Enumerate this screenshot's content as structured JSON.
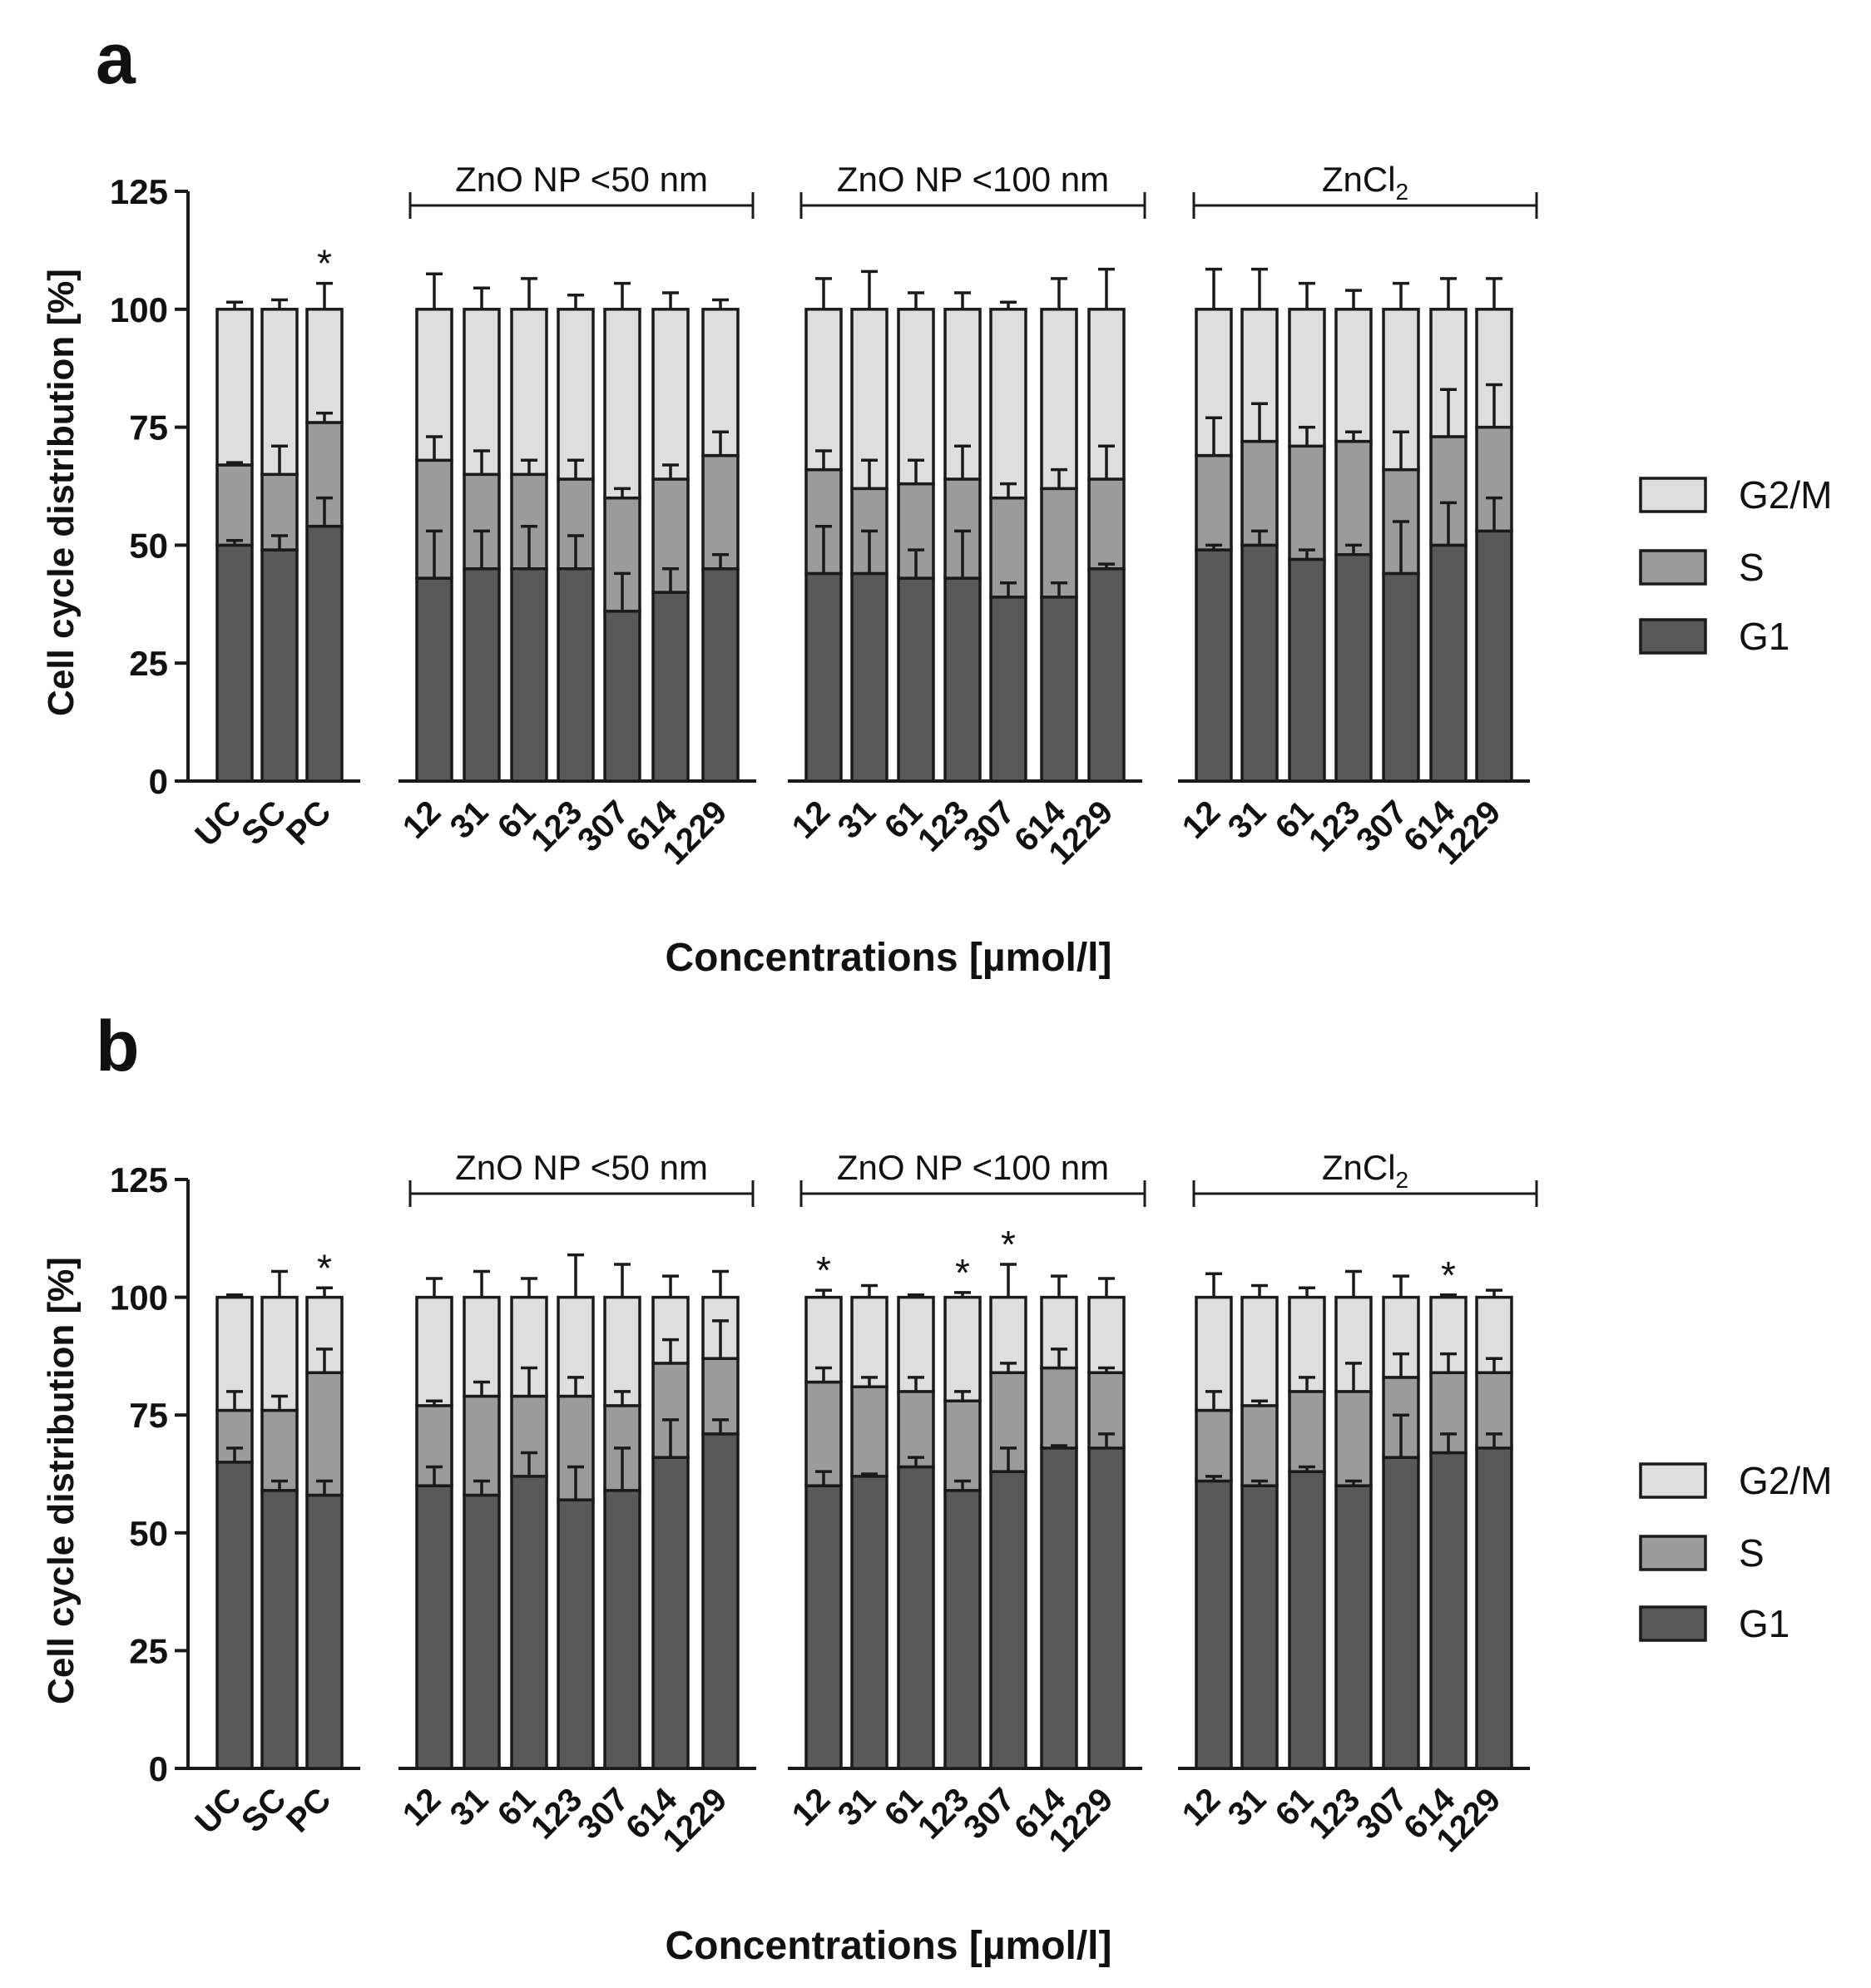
{
  "legend_labels": [
    "G2/M",
    "S",
    "G1"
  ],
  "colors": {
    "g1": "#595959",
    "s": "#9b9b9b",
    "g2m": "#dedede",
    "stroke": "#1a1a1a"
  },
  "chart_data": [
    {
      "type": "bar",
      "stacked": true,
      "panel_label": "a",
      "ylabel": "Cell cycle distribution [%]",
      "xlabel": "Concentrations [µmol/l]",
      "ylim": [
        0,
        125
      ],
      "yticks": [
        0,
        25,
        50,
        75,
        100,
        125
      ],
      "legend_position": "right",
      "groups": [
        {
          "label": "",
          "categories": [
            "UC",
            "SC",
            "PC"
          ]
        },
        {
          "label": "ZnO NP <50 nm",
          "categories": [
            "12",
            "31",
            "61",
            "123",
            "307",
            "614",
            "1229"
          ]
        },
        {
          "label": "ZnO NP <100 nm",
          "categories": [
            "12",
            "31",
            "61",
            "123",
            "307",
            "614",
            "1229"
          ]
        },
        {
          "label": "ZnCl",
          "label_subscript": "2",
          "categories": [
            "12",
            "31",
            "61",
            "123",
            "307",
            "614",
            "1229"
          ]
        }
      ],
      "series": [
        {
          "name": "G1",
          "values": [
            50,
            49,
            54,
            43,
            45,
            45,
            45,
            36,
            40,
            45,
            44,
            44,
            43,
            43,
            39,
            39,
            45,
            49,
            50,
            47,
            48,
            44,
            50,
            53
          ],
          "errors": [
            1,
            3,
            6,
            10,
            8,
            9,
            7,
            8,
            5,
            3,
            10,
            9,
            6,
            10,
            3,
            3,
            1,
            1,
            3,
            2,
            2,
            11,
            9,
            7
          ]
        },
        {
          "name": "S",
          "values": [
            17,
            16,
            22,
            25,
            20,
            20,
            19,
            24,
            24,
            24,
            22,
            18,
            20,
            21,
            21,
            23,
            19,
            20,
            22,
            24,
            24,
            22,
            23,
            22
          ],
          "errors": [
            0.5,
            6,
            2,
            5,
            5,
            3,
            4,
            2,
            3,
            5,
            4,
            6,
            5,
            7,
            3,
            4,
            7,
            8,
            8,
            4,
            2,
            8,
            10,
            9
          ]
        },
        {
          "name": "G2/M",
          "values": [
            33,
            35,
            24,
            32,
            35,
            35,
            36,
            40,
            36,
            31,
            34,
            38,
            37,
            36,
            40,
            38,
            36,
            31,
            28,
            29,
            28,
            34,
            27,
            25
          ],
          "errors": [
            1.5,
            2,
            5.5,
            7.5,
            4.5,
            6.5,
            3,
            5.5,
            3.5,
            2,
            6.5,
            8,
            3.5,
            3.5,
            1.5,
            6.5,
            8.5,
            8.5,
            8.5,
            5.5,
            4,
            5.5,
            6.5,
            6.5
          ]
        }
      ],
      "significance_marks": [
        "",
        "",
        "*",
        "",
        "",
        "",
        "",
        "",
        "",
        "",
        "",
        "",
        "",
        "",
        "",
        "",
        "",
        "",
        "",
        "",
        "",
        "",
        "",
        ""
      ]
    },
    {
      "type": "bar",
      "stacked": true,
      "panel_label": "b",
      "ylabel": "Cell cycle distribution [%]",
      "xlabel": "Concentrations [µmol/l]",
      "ylim": [
        0,
        125
      ],
      "yticks": [
        0,
        25,
        50,
        75,
        100,
        125
      ],
      "legend_position": "right",
      "groups": [
        {
          "label": "",
          "categories": [
            "UC",
            "SC",
            "PC"
          ]
        },
        {
          "label": "ZnO NP <50 nm",
          "categories": [
            "12",
            "31",
            "61",
            "123",
            "307",
            "614",
            "1229"
          ]
        },
        {
          "label": "ZnO NP <100 nm",
          "categories": [
            "12",
            "31",
            "61",
            "123",
            "307",
            "614",
            "1229"
          ]
        },
        {
          "label": "ZnCl",
          "label_subscript": "2",
          "categories": [
            "12",
            "31",
            "61",
            "123",
            "307",
            "614",
            "1229"
          ]
        }
      ],
      "series": [
        {
          "name": "G1",
          "values": [
            65,
            59,
            58,
            60,
            58,
            62,
            57,
            59,
            66,
            71,
            60,
            62,
            64,
            59,
            63,
            68,
            68,
            61,
            60,
            63,
            60,
            66,
            67,
            68
          ],
          "errors": [
            3,
            2,
            3,
            4,
            3,
            5,
            7,
            9,
            8,
            3,
            3,
            0.5,
            2,
            2,
            5,
            0.5,
            3,
            1,
            1,
            1,
            1,
            9,
            4,
            3
          ]
        },
        {
          "name": "S",
          "values": [
            11,
            17,
            26,
            17,
            21,
            17,
            22,
            18,
            20,
            16,
            22,
            19,
            16,
            19,
            21,
            17,
            16,
            15,
            17,
            17,
            20,
            17,
            17,
            16
          ],
          "errors": [
            4,
            3,
            5,
            1,
            3,
            6,
            4,
            3,
            5,
            8,
            3,
            2,
            3,
            2,
            2,
            4,
            1,
            4,
            1,
            3,
            6,
            5,
            4,
            3
          ]
        },
        {
          "name": "G2/M",
          "values": [
            24,
            24,
            16,
            23,
            21,
            21,
            21,
            23,
            14,
            13,
            18,
            19,
            20,
            22,
            16,
            15,
            16,
            24,
            23,
            20,
            20,
            17,
            16,
            16
          ],
          "errors": [
            0.5,
            5.5,
            2,
            4,
            5.5,
            4,
            9,
            7,
            4.5,
            5.5,
            1.5,
            2.5,
            0.5,
            1,
            7,
            4.5,
            4,
            5,
            2.5,
            2,
            5.5,
            4.5,
            0.5,
            1.5
          ]
        }
      ],
      "significance_marks": [
        "",
        "",
        "*",
        "",
        "",
        "",
        "",
        "",
        "",
        "",
        "*",
        "",
        "",
        "*",
        "*",
        "",
        "",
        "",
        "",
        "",
        "",
        "",
        "*",
        ""
      ]
    }
  ]
}
